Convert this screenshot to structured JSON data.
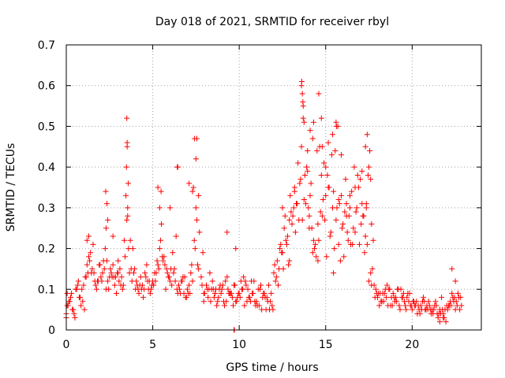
{
  "chart_data": {
    "type": "scatter",
    "title": "Day 018 of 2021, SRMTID for receiver rbyl",
    "xlabel": "GPS time / hours",
    "ylabel": "SRMTID / TECUs",
    "xlim": [
      0,
      24
    ],
    "ylim": [
      0,
      0.7
    ],
    "xticks": [
      0,
      5,
      10,
      15,
      20
    ],
    "xtick_labels": [
      "0",
      "5",
      "10",
      "15",
      "20"
    ],
    "yticks": [
      0,
      0.1,
      0.2,
      0.3,
      0.4,
      0.5,
      0.6,
      0.7
    ],
    "ytick_labels": [
      "0",
      "0.1",
      "0.2",
      "0.3",
      "0.4",
      "0.5",
      "0.6",
      "0.7"
    ],
    "grid": true,
    "marker": "+",
    "color": "#ff0000",
    "series": [
      {
        "name": "SRMTID",
        "x": [
          0.0,
          0.2,
          0.4,
          0.6,
          0.8,
          1.0,
          1.2,
          1.4,
          1.6,
          1.8,
          2.0,
          2.2,
          2.4,
          2.6,
          2.8,
          3.0,
          3.2,
          3.4,
          3.5,
          3.6,
          3.8,
          4.0,
          4.2,
          4.4,
          4.6,
          4.8,
          5.0,
          5.2,
          5.4,
          5.5,
          5.6,
          5.8,
          6.0,
          6.2,
          6.4,
          6.6,
          6.8,
          7.0,
          7.2,
          7.4,
          7.5,
          7.6,
          7.8,
          8.0,
          8.2,
          8.4,
          8.6,
          8.8,
          9.0,
          9.2,
          9.4,
          9.6,
          9.8,
          10.0,
          10.2,
          10.4,
          10.6,
          10.8,
          11.0,
          11.2,
          11.4,
          11.6,
          11.8,
          12.0,
          12.2,
          12.4,
          12.6,
          12.8,
          13.0,
          13.2,
          13.4,
          13.6,
          13.7,
          13.8,
          14.0,
          14.2,
          14.4,
          14.6,
          14.8,
          15.0,
          15.2,
          15.4,
          15.6,
          15.8,
          16.0,
          16.2,
          16.4,
          16.6,
          16.8,
          17.0,
          17.2,
          17.4,
          17.6,
          17.8,
          18.0,
          18.2,
          18.4,
          18.6,
          18.8,
          19.0,
          19.2,
          19.4,
          19.6,
          19.8,
          20.0,
          20.2,
          20.4,
          20.6,
          20.8,
          21.0,
          21.2,
          21.4,
          21.6,
          21.8,
          22.0,
          22.2,
          22.4,
          22.6,
          22.8,
          0.1,
          0.3,
          0.5,
          0.7,
          0.9,
          1.1,
          1.3,
          1.5,
          1.7,
          1.9,
          2.1,
          2.3,
          2.5,
          2.7,
          2.9,
          3.1,
          3.3,
          3.55,
          3.7,
          3.9,
          4.1,
          4.3,
          4.5,
          4.7,
          4.9,
          5.1,
          5.3,
          5.45,
          5.7,
          5.9,
          6.1,
          6.3,
          6.5,
          6.7,
          6.9,
          7.1,
          7.3,
          7.45,
          7.7,
          7.9,
          8.1,
          8.3,
          8.5,
          8.7,
          8.9,
          9.1,
          9.3,
          9.5,
          9.7,
          9.9,
          10.1,
          10.3,
          10.5,
          10.7,
          10.9,
          11.1,
          11.3,
          11.5,
          11.7,
          11.9,
          12.1,
          12.3,
          12.5,
          12.7,
          12.9,
          13.1,
          13.3,
          13.5,
          13.65,
          13.9,
          14.1,
          14.3,
          14.45,
          14.7,
          14.9,
          15.1,
          15.3,
          15.5,
          15.65,
          15.9,
          16.1,
          16.3,
          16.5,
          16.7,
          16.9,
          17.1,
          17.3,
          17.5,
          17.7,
          17.9,
          18.1,
          18.3,
          18.5,
          18.7,
          18.9,
          19.1,
          19.3,
          19.5,
          19.7,
          19.9,
          20.1,
          20.3,
          20.5,
          20.7,
          20.9,
          21.1,
          21.3,
          21.5,
          21.7,
          21.9,
          22.1,
          22.3,
          22.5,
          22.7,
          0.05,
          0.35,
          0.65,
          0.95,
          1.25,
          1.55,
          1.85,
          2.15,
          2.45,
          2.75,
          3.05,
          3.35,
          3.45,
          3.52,
          3.58,
          3.65,
          3.95,
          4.25,
          4.55,
          4.85,
          5.15,
          5.35,
          5.48,
          5.75,
          6.05,
          6.35,
          6.42,
          6.65,
          6.95,
          7.25,
          7.35,
          7.42,
          7.55,
          7.85,
          8.15,
          8.45,
          8.75,
          9.05,
          9.35,
          9.65,
          9.95,
          10.25,
          10.55,
          10.85,
          11.15,
          11.45,
          11.75,
          12.05,
          12.35,
          12.65,
          12.95,
          13.25,
          13.55,
          13.62,
          13.68,
          13.85,
          14.05,
          14.35,
          14.55,
          14.65,
          14.85,
          15.05,
          15.35,
          15.55,
          15.62,
          15.85,
          16.15,
          16.45,
          16.75,
          17.05,
          17.35,
          17.45,
          17.55,
          17.65,
          17.95,
          18.25,
          18.55,
          18.85,
          19.15,
          19.45,
          19.75,
          20.05,
          20.35,
          20.65,
          20.95,
          21.25,
          21.55,
          21.85,
          22.15,
          22.45,
          22.75,
          0.15,
          0.45,
          0.75,
          1.05,
          1.35,
          1.65,
          1.95,
          2.25,
          2.55,
          2.85,
          3.15,
          3.75,
          4.05,
          4.35,
          4.65,
          4.95,
          5.25,
          5.65,
          5.95,
          6.25,
          6.55,
          6.85,
          7.15,
          7.65,
          7.95,
          8.25,
          8.55,
          8.85,
          9.15,
          9.45,
          9.75,
          10.05,
          10.35,
          10.65,
          10.95,
          11.25,
          11.55,
          11.85,
          12.15,
          12.45,
          12.75,
          13.05,
          13.35,
          13.75,
          13.95,
          14.15,
          14.25,
          14.75,
          14.95,
          15.15,
          15.45,
          15.75,
          15.95,
          16.25,
          16.55,
          16.85,
          17.15,
          17.25,
          17.75,
          18.05,
          18.35,
          18.65,
          18.95,
          19.25,
          19.55,
          19.85,
          20.15,
          20.45,
          20.75,
          21.05,
          21.35,
          21.65,
          21.95,
          22.25,
          22.55,
          22.85,
          0.25,
          0.55,
          0.85,
          1.15,
          1.45,
          1.75,
          2.05,
          2.35,
          2.65,
          2.95,
          3.25,
          3.85,
          4.15,
          4.45,
          4.75,
          5.05,
          5.55,
          5.85,
          6.15,
          6.45,
          6.75,
          7.05,
          7.65,
          7.95,
          8.35,
          8.65,
          8.95,
          9.25,
          9.55,
          9.85,
          10.15,
          10.45,
          10.75,
          11.05,
          11.35,
          11.65,
          11.95,
          12.25,
          12.55,
          12.85,
          13.15,
          13.45,
          13.95,
          14.05,
          14.25,
          14.55,
          14.75,
          15.25,
          15.45,
          15.75,
          16.05,
          16.35,
          16.65,
          16.95,
          17.35,
          17.65,
          17.85,
          18.15,
          18.45,
          18.75,
          19.05,
          19.35,
          19.65,
          19.95,
          20.25,
          20.55,
          20.85,
          21.15,
          21.45,
          21.75,
          22.05,
          22.35,
          22.65,
          9.7,
          9.72,
          2.3,
          2.35,
          2.4,
          2.28,
          3.5,
          3.52,
          3.48,
          3.55,
          5.3,
          5.4,
          6.0,
          6.45,
          7.1,
          7.3,
          7.5,
          7.55,
          9.3,
          9.8,
          12.5,
          12.9,
          13.2,
          13.6,
          13.65,
          13.7,
          13.75,
          14.1,
          14.3,
          14.5,
          14.6,
          14.8,
          15.0,
          15.15,
          15.4,
          15.6,
          15.7,
          15.9,
          16.2,
          16.4,
          16.7,
          17.1,
          17.3,
          17.4,
          17.5,
          17.6,
          22.3,
          22.5,
          21.8,
          21.6,
          0.0,
          0.05,
          1.2,
          1.3,
          2.7,
          3.0
        ],
        "y": [
          0.04,
          0.07,
          0.05,
          0.1,
          0.08,
          0.11,
          0.16,
          0.19,
          0.14,
          0.12,
          0.13,
          0.15,
          0.12,
          0.14,
          0.11,
          0.14,
          0.13,
          0.18,
          0.27,
          0.2,
          0.12,
          0.1,
          0.09,
          0.11,
          0.13,
          0.12,
          0.12,
          0.14,
          0.2,
          0.26,
          0.17,
          0.15,
          0.12,
          0.14,
          0.1,
          0.09,
          0.09,
          0.1,
          0.14,
          0.22,
          0.3,
          0.16,
          0.13,
          0.09,
          0.08,
          0.1,
          0.09,
          0.08,
          0.1,
          0.12,
          0.09,
          0.08,
          0.07,
          0.09,
          0.1,
          0.11,
          0.08,
          0.09,
          0.07,
          0.1,
          0.09,
          0.08,
          0.07,
          0.14,
          0.17,
          0.21,
          0.25,
          0.23,
          0.29,
          0.34,
          0.41,
          0.45,
          0.52,
          0.38,
          0.3,
          0.25,
          0.21,
          0.22,
          0.28,
          0.33,
          0.35,
          0.3,
          0.27,
          0.31,
          0.26,
          0.28,
          0.33,
          0.25,
          0.3,
          0.37,
          0.28,
          0.21,
          0.14,
          0.11,
          0.08,
          0.07,
          0.09,
          0.06,
          0.08,
          0.07,
          0.1,
          0.08,
          0.06,
          0.07,
          0.05,
          0.06,
          0.05,
          0.07,
          0.05,
          0.06,
          0.04,
          0.06,
          0.05,
          0.03,
          0.06,
          0.07,
          0.07,
          0.06,
          0.08,
          0.06,
          0.09,
          0.03,
          0.12,
          0.1,
          0.13,
          0.18,
          0.15,
          0.11,
          0.16,
          0.14,
          0.1,
          0.13,
          0.16,
          0.09,
          0.15,
          0.11,
          0.3,
          0.22,
          0.14,
          0.11,
          0.13,
          0.1,
          0.12,
          0.1,
          0.14,
          0.16,
          0.22,
          0.16,
          0.13,
          0.11,
          0.12,
          0.11,
          0.12,
          0.08,
          0.11,
          0.12,
          0.2,
          0.24,
          0.19,
          0.11,
          0.14,
          0.1,
          0.06,
          0.11,
          0.07,
          0.13,
          0.09,
          0.11,
          0.08,
          0.12,
          0.06,
          0.1,
          0.12,
          0.07,
          0.1,
          0.05,
          0.08,
          0.11,
          0.06,
          0.12,
          0.15,
          0.19,
          0.22,
          0.17,
          0.28,
          0.31,
          0.36,
          0.27,
          0.4,
          0.33,
          0.22,
          0.18,
          0.29,
          0.41,
          0.38,
          0.24,
          0.2,
          0.3,
          0.33,
          0.29,
          0.22,
          0.34,
          0.24,
          0.35,
          0.31,
          0.23,
          0.12,
          0.15,
          0.1,
          0.06,
          0.09,
          0.08,
          0.1,
          0.09,
          0.07,
          0.05,
          0.09,
          0.08,
          0.06,
          0.07,
          0.04,
          0.06,
          0.07,
          0.05,
          0.04,
          0.06,
          0.03,
          0.08,
          0.05,
          0.06,
          0.09,
          0.05,
          0.08,
          0.09,
          0.05,
          0.11,
          0.07,
          0.14,
          0.21,
          0.12,
          0.17,
          0.1,
          0.13,
          0.12,
          0.22,
          0.33,
          0.46,
          0.36,
          0.14,
          0.15,
          0.11,
          0.14,
          0.09,
          0.12,
          0.15,
          0.34,
          0.1,
          0.15,
          0.23,
          0.4,
          0.12,
          0.08,
          0.16,
          0.35,
          0.47,
          0.27,
          0.11,
          0.1,
          0.12,
          0.07,
          0.11,
          0.1,
          0.06,
          0.09,
          0.13,
          0.08,
          0.12,
          0.06,
          0.09,
          0.05,
          0.16,
          0.2,
          0.28,
          0.33,
          0.24,
          0.37,
          0.61,
          0.56,
          0.31,
          0.25,
          0.2,
          0.17,
          0.45,
          0.32,
          0.18,
          0.43,
          0.44,
          0.5,
          0.17,
          0.37,
          0.21,
          0.29,
          0.26,
          0.31,
          0.38,
          0.44,
          0.26,
          0.09,
          0.07,
          0.11,
          0.06,
          0.1,
          0.08,
          0.09,
          0.07,
          0.06,
          0.08,
          0.07,
          0.05,
          0.04,
          0.03,
          0.06,
          0.08,
          0.05,
          0.07,
          0.04,
          0.08,
          0.05,
          0.17,
          0.12,
          0.16,
          0.2,
          0.15,
          0.13,
          0.11,
          0.15,
          0.12,
          0.1,
          0.16,
          0.11,
          0.17,
          0.18,
          0.13,
          0.15,
          0.1,
          0.13,
          0.09,
          0.15,
          0.07,
          0.1,
          0.08,
          0.1,
          0.06,
          0.09,
          0.11,
          0.08,
          0.12,
          0.07,
          0.06,
          0.11,
          0.05,
          0.09,
          0.13,
          0.19,
          0.21,
          0.26,
          0.31,
          0.32,
          0.44,
          0.36,
          0.47,
          0.38,
          0.27,
          0.35,
          0.14,
          0.32,
          0.25,
          0.24,
          0.21,
          0.38,
          0.28,
          0.19,
          0.22,
          0.09,
          0.07,
          0.1,
          0.08,
          0.06,
          0.07,
          0.09,
          0.06,
          0.04,
          0.05,
          0.05,
          0.07,
          0.04,
          0.02,
          0.06,
          0.07,
          0.06,
          0.08,
          0.1,
          0.06,
          0.13,
          0.14,
          0.1,
          0.12,
          0.17,
          0.13,
          0.14,
          0.1,
          0.2,
          0.1,
          0.08,
          0.1,
          0.11,
          0.18,
          0.14,
          0.19,
          0.09,
          0.13,
          0.09,
          0.33,
          0.09,
          0.07,
          0.1,
          0.09,
          0.07,
          0.09,
          0.07,
          0.1,
          0.07,
          0.09,
          0.06,
          0.08,
          0.07,
          0.05,
          0.11,
          0.15,
          0.16,
          0.3,
          0.27,
          0.39,
          0.28,
          0.19,
          0.26,
          0.52,
          0.23,
          0.34,
          0.21,
          0.18,
          0.28,
          0.4,
          0.21,
          0.3,
          0.11,
          0.08,
          0.09,
          0.1,
          0.06,
          0.08,
          0.1,
          0.05,
          0.06,
          0.07,
          0.05,
          0.06,
          0.05,
          0.04,
          0.05,
          0.05,
          0.08,
          0.09,
          0.0,
          0.0,
          0.25,
          0.31,
          0.27,
          0.34,
          0.52,
          0.45,
          0.4,
          0.28,
          0.35,
          0.3,
          0.3,
          0.4,
          0.36,
          0.34,
          0.42,
          0.47,
          0.24,
          0.2,
          0.3,
          0.27,
          0.35,
          0.6,
          0.58,
          0.55,
          0.51,
          0.49,
          0.51,
          0.44,
          0.58,
          0.45,
          0.4,
          0.46,
          0.48,
          0.51,
          0.5,
          0.43,
          0.31,
          0.3,
          0.35,
          0.39,
          0.45,
          0.48,
          0.4,
          0.37,
          0.15,
          0.12,
          0.04,
          0.02,
          0.03,
          0.06,
          0.22,
          0.23,
          0.23,
          0.17
        ]
      }
    ]
  }
}
